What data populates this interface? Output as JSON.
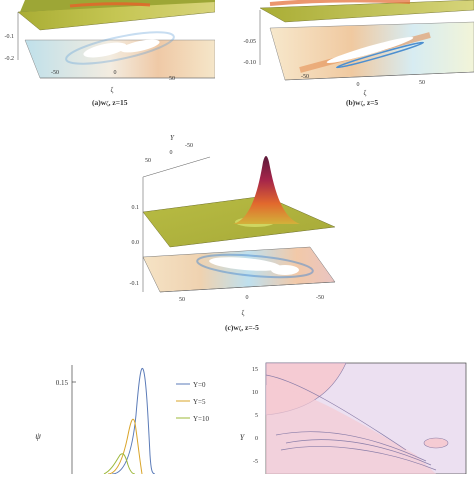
{
  "panel_a": {
    "z_ticks": [
      "-0.1",
      "-0.2"
    ],
    "x_ticks": [
      "-50",
      "0",
      "50"
    ],
    "xlabel": "ζ",
    "caption_main": "(a)",
    "caption_rest": "w",
    "caption_sub": "ζ",
    "caption_tail": ", z=15"
  },
  "panel_b": {
    "z_ticks": [
      "-0.05",
      "-0.10"
    ],
    "x_ticks": [
      "-50",
      "0",
      "50"
    ],
    "xlabel": "ζ",
    "caption_main": "(b)",
    "caption_rest": "w",
    "caption_sub": "ζ",
    "caption_tail": ", z=5"
  },
  "panel_c": {
    "ylabel": "Y",
    "y_ticks": [
      "50",
      "0",
      "-50"
    ],
    "z_ticks": [
      "0.1",
      "0.0",
      "-0.1"
    ],
    "x_ticks": [
      "50",
      "0",
      "-50"
    ],
    "xlabel": "ζ",
    "caption_main": "(c)",
    "caption_rest": "w",
    "caption_sub": "ζ",
    "caption_tail": ", z=-5"
  },
  "panel_d": {
    "ylabel": "ψ",
    "y_tick": "0.15",
    "legend": [
      {
        "label": "Y=0",
        "color": "#5b7bb8"
      },
      {
        "label": "Y=5",
        "color": "#d9a42a"
      },
      {
        "label": "Y=10",
        "color": "#9cb83a"
      }
    ]
  },
  "panel_e": {
    "ylabel": "Y",
    "y_ticks": [
      "15",
      "10",
      "5",
      "0",
      "-5"
    ]
  }
}
